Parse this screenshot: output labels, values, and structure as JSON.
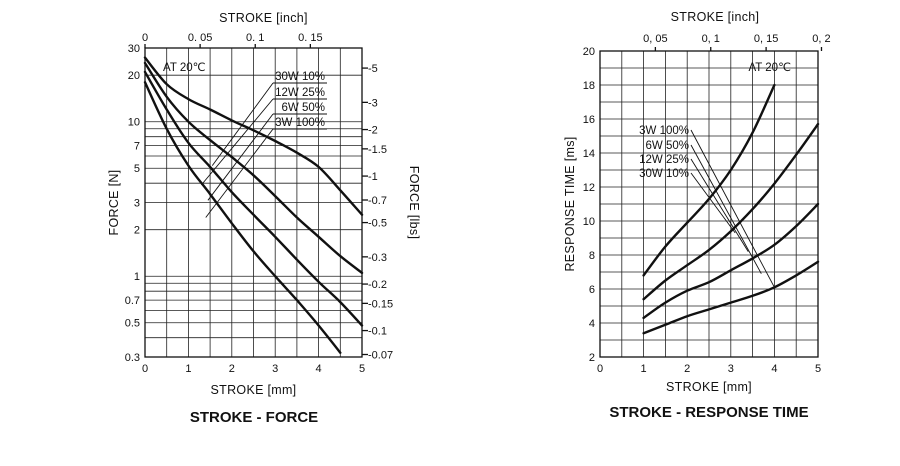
{
  "chart_data": [
    {
      "type": "line",
      "title": "STROKE - FORCE",
      "xlabel": "STROKE [mm]",
      "x2label": "STROKE [inch]",
      "ylabel": "FORCE [N]",
      "y2label": "FORCE [lbs]",
      "xlim": [
        0,
        5
      ],
      "ylim": [
        0.3,
        30
      ],
      "yscale": "log",
      "annotation": "AT 20℃",
      "xticks": [
        "0",
        "1",
        "2",
        "3",
        "4",
        "5"
      ],
      "x2ticks": [
        "0",
        "0. 05",
        "0. 1",
        "0. 15"
      ],
      "yticks": [
        "0.3",
        "0.5",
        "0.7",
        "1",
        "2",
        "3",
        "5",
        "7",
        "10",
        "20",
        "30"
      ],
      "y2ticks": [
        "-5",
        "-3",
        "-2",
        "-1.5",
        "-1",
        "-0.7",
        "-0.5",
        "-0.3",
        "-0.2",
        "-0.15",
        "-0.1",
        "-0.07"
      ],
      "legend": [
        "30W  10%",
        "12W  25%",
        "6W  50%",
        "3W 100%"
      ],
      "series": [
        {
          "name": "30W 10%",
          "x": [
            0,
            0.5,
            1,
            1.5,
            2,
            2.5,
            3,
            3.5,
            4,
            4.5,
            5
          ],
          "y": [
            26,
            17.5,
            14,
            12,
            10.2,
            8.8,
            7.5,
            6.3,
            5.1,
            3.6,
            2.5
          ]
        },
        {
          "name": "12W 25%",
          "x": [
            0,
            0.5,
            1,
            1.5,
            2,
            2.5,
            3,
            3.5,
            4,
            4.5,
            5
          ],
          "y": [
            24,
            14.5,
            10,
            7.6,
            5.9,
            4.5,
            3.3,
            2.4,
            1.8,
            1.35,
            1.05
          ]
        },
        {
          "name": "6W 50%",
          "x": [
            0,
            0.5,
            1,
            1.5,
            2,
            2.5,
            3,
            3.5,
            4,
            4.5,
            5
          ],
          "y": [
            21,
            12,
            7.3,
            5.1,
            3.5,
            2.5,
            1.8,
            1.28,
            0.92,
            0.68,
            0.48
          ]
        },
        {
          "name": "3W 100%",
          "x": [
            0,
            0.5,
            1,
            1.5,
            2,
            2.5,
            3,
            3.5,
            4,
            4.5
          ],
          "y": [
            18,
            9,
            5.2,
            3.4,
            2.2,
            1.45,
            1.0,
            0.7,
            0.48,
            0.32
          ]
        }
      ]
    },
    {
      "type": "line",
      "title": "STROKE - RESPONSE TIME",
      "xlabel": "STROKE [mm]",
      "x2label": "STROKE [inch]",
      "ylabel": "RESPONSE TIME [ms]",
      "xlim": [
        0,
        5
      ],
      "ylim": [
        2,
        20
      ],
      "annotation": "AT 20℃",
      "xticks": [
        "0",
        "1",
        "2",
        "3",
        "4",
        "5"
      ],
      "x2ticks": [
        "0, 05",
        "0, 1",
        "0, 15",
        "0, 2"
      ],
      "yticks": [
        "2",
        "4",
        "6",
        "8",
        "10",
        "12",
        "14",
        "16",
        "18",
        "20"
      ],
      "legend": [
        "3W  100%",
        "6W  50%",
        "12W  25%",
        "30W  10%"
      ],
      "series": [
        {
          "name": "3W 100%",
          "x": [
            1,
            1.5,
            2,
            2.5,
            3,
            3.5,
            4
          ],
          "y": [
            6.8,
            8.5,
            9.9,
            11.3,
            13.0,
            15.2,
            18.0
          ]
        },
        {
          "name": "6W 50%",
          "x": [
            1,
            1.5,
            2,
            2.5,
            3,
            3.5,
            4,
            4.5,
            5
          ],
          "y": [
            5.4,
            6.5,
            7.4,
            8.3,
            9.4,
            10.7,
            12.2,
            13.9,
            15.7
          ]
        },
        {
          "name": "12W 25%",
          "x": [
            1,
            1.5,
            2,
            2.5,
            3,
            3.5,
            4,
            4.5,
            5
          ],
          "y": [
            4.3,
            5.2,
            5.9,
            6.4,
            7.1,
            7.8,
            8.6,
            9.7,
            11.0
          ]
        },
        {
          "name": "30W 10%",
          "x": [
            1,
            1.5,
            2,
            2.5,
            3,
            3.5,
            4,
            4.5,
            5
          ],
          "y": [
            3.4,
            3.9,
            4.4,
            4.8,
            5.2,
            5.6,
            6.1,
            6.8,
            7.6
          ]
        }
      ]
    }
  ]
}
